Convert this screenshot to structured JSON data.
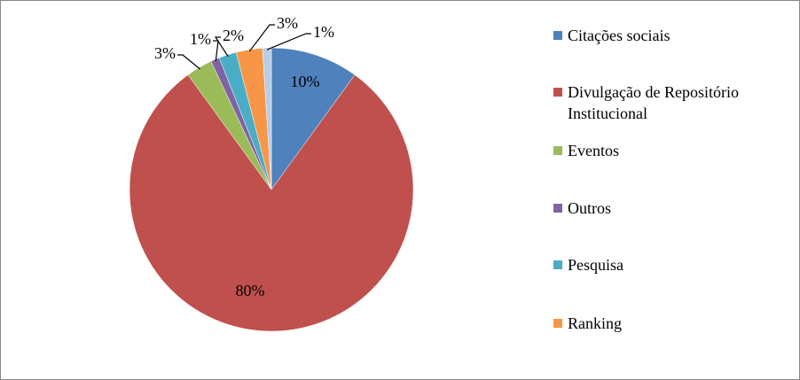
{
  "chart_data": {
    "type": "pie",
    "categories": [
      "Citações sociais",
      "Divulgação de Repositório Institucional",
      "Eventos",
      "Outros",
      "Pesquisa",
      "Ranking",
      null
    ],
    "values": [
      10,
      80,
      3,
      1,
      2,
      3,
      1
    ],
    "value_labels": [
      "10%",
      "80%",
      "3%",
      "1%",
      "2%",
      "3%",
      "1%"
    ],
    "colors": [
      "#4f81bd",
      "#c0504d",
      "#9bbb59",
      "#8064a2",
      "#4bacc6",
      "#f79646",
      "#b9cde5"
    ],
    "legend": "right"
  }
}
